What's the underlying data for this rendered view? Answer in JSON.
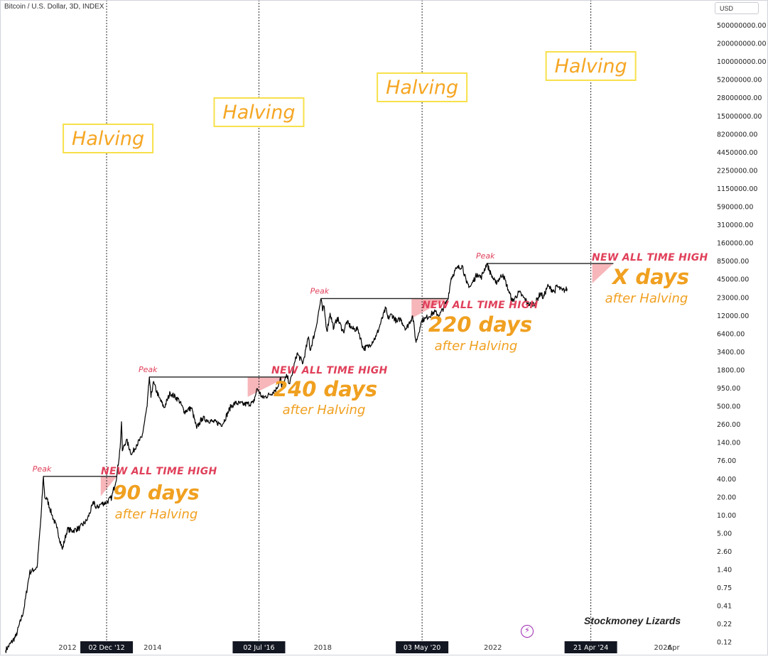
{
  "header": {
    "symbol": "Bitcoin / U.S. Dollar, 3D, INDEX",
    "currency": "USD"
  },
  "watermark": "Stockmoney Lizards",
  "icons": {
    "flash": "lightning-icon"
  },
  "colors": {
    "price": "#000000",
    "halving_line": "#2b2b2b",
    "halving_text": "#f5a623",
    "halving_box": "#f7e14b",
    "ath_text": "#e0405a",
    "days_text": "#f0a020",
    "shade": "#f4a9ae",
    "peak_line": "#222222"
  },
  "chart_data": {
    "type": "line",
    "title": "",
    "xlabel": "",
    "ylabel": "",
    "y_scale": "log",
    "ylim": [
      0.1,
      500000000
    ],
    "xlim": [
      "2010-07-01",
      "2026-10-01"
    ],
    "grid": false,
    "y_ticks": [
      "500000000.00",
      "200000000.00",
      "100000000.00",
      "52000000.00",
      "28000000.00",
      "15000000.00",
      "8200000.00",
      "4450000.00",
      "2250000.00",
      "1150000.00",
      "590000.00",
      "310000.00",
      "160000.00",
      "85000.00",
      "45000.00",
      "23000.00",
      "12000.00",
      "6400.00",
      "3400.00",
      "1800.00",
      "950.00",
      "500.00",
      "260.00",
      "140.00",
      "76.00",
      "40.00",
      "20.00",
      "10.00",
      "5.00",
      "2.60",
      "1.40",
      "0.75",
      "0.41",
      "0.22",
      "0.12"
    ],
    "x_ticks": [
      {
        "label": "2012",
        "date": "2012-01-01",
        "highlight": false
      },
      {
        "label": "02 Dec '12",
        "date": "2012-12-02",
        "highlight": true
      },
      {
        "label": "2014",
        "date": "2014-01-01",
        "highlight": false
      },
      {
        "label": "20",
        "date": "2016-01-01",
        "highlight": false
      },
      {
        "label": "02 Jul '16",
        "date": "2016-07-02",
        "highlight": true
      },
      {
        "label": "2018",
        "date": "2018-01-01",
        "highlight": false
      },
      {
        "label": "03 May '20",
        "date": "2020-05-03",
        "highlight": true
      },
      {
        "label": "2022",
        "date": "2022-01-01",
        "highlight": false
      },
      {
        "label": "21 Apr '24",
        "date": "2024-04-21",
        "highlight": true
      },
      {
        "label": "2026",
        "date": "2026-01-01",
        "highlight": false
      },
      {
        "label": "Apr",
        "date": "2026-04-01",
        "highlight": false
      }
    ],
    "halvings": [
      {
        "date": "2012-12-02",
        "label": "Halving"
      },
      {
        "date": "2016-07-02",
        "label": "Halving"
      },
      {
        "date": "2020-05-03",
        "label": "Halving"
      },
      {
        "date": "2024-04-21",
        "label": "Halving"
      }
    ],
    "cycles": [
      {
        "peak_label": "Peak",
        "peak_date": "2011-06-08",
        "peak_value": 32,
        "ath_date": "2013-02-28",
        "ath_label": "NEW ALL TIME HIGH",
        "days": "90 days",
        "after": "after Halving"
      },
      {
        "peak_label": "Peak",
        "peak_date": "2013-12-04",
        "peak_value": 1150,
        "ath_date": "2017-02-28",
        "ath_label": "NEW ALL TIME HIGH",
        "days": "240 days",
        "after": "after Halving"
      },
      {
        "peak_label": "Peak",
        "peak_date": "2017-12-17",
        "peak_value": 19500,
        "ath_date": "2020-12-10",
        "ath_label": "NEW ALL TIME HIGH",
        "days": "220 days",
        "after": "after Halving"
      },
      {
        "peak_label": "Peak",
        "peak_date": "2021-11-10",
        "peak_value": 69000,
        "ath_date": "2024-11-01",
        "ath_label": "NEW ALL TIME HIGH",
        "days": "X days",
        "after": "after Halving"
      }
    ],
    "series": [
      {
        "values": [
          [
            "2010-07-18",
            0.06
          ],
          [
            "2010-10-15",
            0.1
          ],
          [
            "2010-12-20",
            0.25
          ],
          [
            "2011-02-10",
            1
          ],
          [
            "2011-04-15",
            1.2
          ],
          [
            "2011-05-20",
            8
          ],
          [
            "2011-06-08",
            32
          ],
          [
            "2011-06-20",
            15
          ],
          [
            "2011-07-10",
            14
          ],
          [
            "2011-08-20",
            8
          ],
          [
            "2011-10-01",
            5
          ],
          [
            "2011-11-18",
            2.3
          ],
          [
            "2011-12-30",
            4.7
          ],
          [
            "2012-02-15",
            4.5
          ],
          [
            "2012-04-15",
            5
          ],
          [
            "2012-06-15",
            6.5
          ],
          [
            "2012-08-17",
            13
          ],
          [
            "2012-09-01",
            10
          ],
          [
            "2012-10-15",
            11.8
          ],
          [
            "2012-12-02",
            12.5
          ],
          [
            "2013-01-15",
            15
          ],
          [
            "2013-02-28",
            33
          ],
          [
            "2013-03-28",
            90
          ],
          [
            "2013-04-09",
            230
          ],
          [
            "2013-04-16",
            80
          ],
          [
            "2013-05-20",
            120
          ],
          [
            "2013-07-06",
            70
          ],
          [
            "2013-08-15",
            100
          ],
          [
            "2013-10-01",
            130
          ],
          [
            "2013-11-15",
            400
          ],
          [
            "2013-12-04",
            1150
          ],
          [
            "2013-12-18",
            550
          ],
          [
            "2014-01-06",
            950
          ],
          [
            "2014-02-25",
            550
          ],
          [
            "2014-04-10",
            380
          ],
          [
            "2014-06-01",
            650
          ],
          [
            "2014-08-15",
            500
          ],
          [
            "2014-10-01",
            330
          ],
          [
            "2014-12-01",
            380
          ],
          [
            "2015-01-14",
            180
          ],
          [
            "2015-03-01",
            260
          ],
          [
            "2015-06-01",
            230
          ],
          [
            "2015-08-24",
            210
          ],
          [
            "2015-11-04",
            400
          ],
          [
            "2015-12-15",
            450
          ],
          [
            "2016-03-01",
            430
          ],
          [
            "2016-05-15",
            450
          ],
          [
            "2016-06-17",
            760
          ],
          [
            "2016-07-02",
            680
          ],
          [
            "2016-08-02",
            540
          ],
          [
            "2016-10-01",
            610
          ],
          [
            "2016-12-01",
            750
          ],
          [
            "2017-01-04",
            1130
          ],
          [
            "2017-01-12",
            800
          ],
          [
            "2017-02-28",
            1190
          ],
          [
            "2017-03-24",
            900
          ],
          [
            "2017-05-25",
            2700
          ],
          [
            "2017-07-15",
            1900
          ],
          [
            "2017-09-01",
            4900
          ],
          [
            "2017-09-15",
            3000
          ],
          [
            "2017-11-01",
            6500
          ],
          [
            "2017-12-17",
            19500
          ],
          [
            "2017-12-30",
            12500
          ],
          [
            "2018-01-10",
            15000
          ],
          [
            "2018-02-06",
            6000
          ],
          [
            "2018-03-05",
            11500
          ],
          [
            "2018-04-06",
            6600
          ],
          [
            "2018-05-05",
            9800
          ],
          [
            "2018-06-28",
            5800
          ],
          [
            "2018-07-25",
            8400
          ],
          [
            "2018-09-15",
            6500
          ],
          [
            "2018-11-01",
            6400
          ],
          [
            "2018-12-15",
            3200
          ],
          [
            "2019-02-01",
            3500
          ],
          [
            "2019-04-05",
            5000
          ],
          [
            "2019-06-26",
            13800
          ],
          [
            "2019-07-15",
            9500
          ],
          [
            "2019-08-15",
            11000
          ],
          [
            "2019-10-01",
            8300
          ],
          [
            "2019-10-27",
            9500
          ],
          [
            "2019-12-18",
            6500
          ],
          [
            "2020-02-12",
            10400
          ],
          [
            "2020-03-12",
            4000
          ],
          [
            "2020-04-15",
            7000
          ],
          [
            "2020-05-03",
            9000
          ],
          [
            "2020-06-01",
            9500
          ],
          [
            "2020-08-15",
            12000
          ],
          [
            "2020-10-01",
            10700
          ],
          [
            "2020-12-10",
            19000
          ],
          [
            "2021-01-08",
            41000
          ],
          [
            "2021-02-21",
            57000
          ],
          [
            "2021-04-14",
            64000
          ],
          [
            "2021-05-19",
            34000
          ],
          [
            "2021-06-22",
            30000
          ],
          [
            "2021-08-20",
            48000
          ],
          [
            "2021-09-21",
            41000
          ],
          [
            "2021-11-10",
            69000
          ],
          [
            "2021-12-15",
            47000
          ],
          [
            "2022-01-24",
            34000
          ],
          [
            "2022-03-28",
            47000
          ],
          [
            "2022-05-12",
            27000
          ],
          [
            "2022-06-18",
            17600
          ],
          [
            "2022-08-14",
            24500
          ],
          [
            "2022-11-09",
            15600
          ],
          [
            "2022-12-30",
            16500
          ],
          [
            "2023-02-15",
            24000
          ],
          [
            "2023-03-10",
            19800
          ],
          [
            "2023-04-14",
            30400
          ],
          [
            "2023-06-15",
            25000
          ],
          [
            "2023-07-01",
            30500
          ],
          [
            "2023-08-20",
            26000
          ],
          [
            "2023-09-15",
            26500
          ],
          [
            "2023-10-01",
            27800
          ]
        ]
      }
    ]
  }
}
